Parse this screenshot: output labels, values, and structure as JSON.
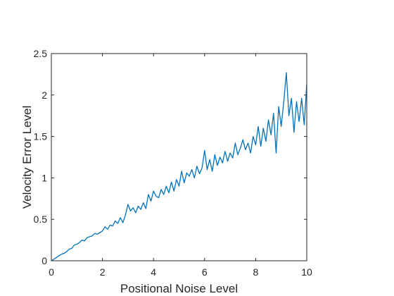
{
  "chart_data": {
    "type": "line",
    "title": "",
    "xlabel": "Positional Noise Level",
    "ylabel": "Velocity Error Level",
    "xlim": [
      0,
      10
    ],
    "ylim": [
      0,
      2.5
    ],
    "xticks": [
      0,
      2,
      4,
      6,
      8,
      10
    ],
    "xtick_labels": [
      "0",
      "2",
      "4",
      "6",
      "8",
      "10"
    ],
    "yticks": [
      0,
      0.5,
      1,
      1.5,
      2,
      2.5
    ],
    "ytick_labels": [
      "0",
      "0.5",
      "1",
      "1.5",
      "2",
      "2.5"
    ],
    "grid": false,
    "legend": "none",
    "line_color": "#0072BD",
    "axis_color": "#262626",
    "series": [
      {
        "x": [
          0.0,
          0.1,
          0.2,
          0.3,
          0.4,
          0.5,
          0.6,
          0.7,
          0.8,
          0.9,
          1.0,
          1.1,
          1.2,
          1.3,
          1.4,
          1.5,
          1.6,
          1.7,
          1.8,
          1.9,
          2.0,
          2.1,
          2.2,
          2.3,
          2.4,
          2.5,
          2.6,
          2.7,
          2.8,
          2.9,
          3.0,
          3.1,
          3.2,
          3.3,
          3.4,
          3.5,
          3.6,
          3.7,
          3.8,
          3.9,
          4.0,
          4.1,
          4.2,
          4.3,
          4.4,
          4.5,
          4.6,
          4.7,
          4.8,
          4.9,
          5.0,
          5.1,
          5.2,
          5.3,
          5.4,
          5.5,
          5.6,
          5.7,
          5.8,
          5.9,
          6.0,
          6.1,
          6.2,
          6.3,
          6.4,
          6.5,
          6.6,
          6.7,
          6.8,
          6.9,
          7.0,
          7.1,
          7.2,
          7.3,
          7.4,
          7.5,
          7.6,
          7.7,
          7.8,
          7.9,
          8.0,
          8.1,
          8.2,
          8.3,
          8.4,
          8.5,
          8.6,
          8.7,
          8.8,
          8.9,
          9.0,
          9.1,
          9.2,
          9.3,
          9.4,
          9.5,
          9.6,
          9.7,
          9.8,
          9.9,
          10.0
        ],
        "y": [
          0.0,
          0.02,
          0.04,
          0.06,
          0.08,
          0.09,
          0.11,
          0.14,
          0.15,
          0.19,
          0.2,
          0.22,
          0.25,
          0.24,
          0.28,
          0.29,
          0.3,
          0.33,
          0.32,
          0.34,
          0.36,
          0.41,
          0.38,
          0.43,
          0.42,
          0.48,
          0.45,
          0.52,
          0.46,
          0.55,
          0.68,
          0.6,
          0.64,
          0.58,
          0.66,
          0.62,
          0.7,
          0.63,
          0.8,
          0.72,
          0.84,
          0.78,
          0.76,
          0.86,
          0.8,
          0.9,
          0.82,
          0.95,
          0.84,
          0.98,
          0.9,
          1.08,
          0.94,
          1.06,
          1.02,
          1.1,
          1.0,
          1.14,
          1.05,
          1.12,
          1.33,
          1.1,
          1.22,
          1.08,
          1.28,
          1.15,
          1.25,
          1.18,
          1.32,
          1.2,
          1.3,
          1.24,
          1.42,
          1.28,
          1.36,
          1.46,
          1.34,
          1.42,
          1.3,
          1.5,
          1.4,
          1.62,
          1.38,
          1.6,
          1.44,
          1.7,
          1.52,
          1.78,
          1.3,
          1.86,
          1.62,
          1.92,
          2.27,
          1.75,
          1.96,
          1.55,
          1.92,
          1.68,
          1.96,
          1.64,
          2.13
        ]
      }
    ]
  }
}
